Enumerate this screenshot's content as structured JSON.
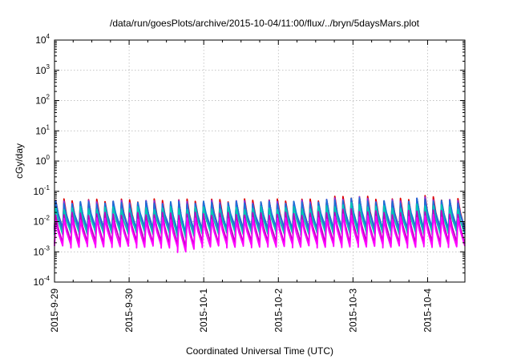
{
  "chart_data": {
    "type": "line",
    "title": "/data/run/goesPlots/archive/2015-10-04/11:00/flux/../bryn/5daysMars.plot",
    "xlabel": "Coordinated Universal Time (UTC)",
    "ylabel": "cGy/day",
    "y_scale": "log",
    "ylim": [
      0.0001,
      10000
    ],
    "y_tick_labels": [
      {
        "base": "10",
        "exp": "-4",
        "value": 0.0001
      },
      {
        "base": "10",
        "exp": "-3",
        "value": 0.001
      },
      {
        "base": "10",
        "exp": "-2",
        "value": 0.01
      },
      {
        "base": "10",
        "exp": "-1",
        "value": 0.1
      },
      {
        "base": "10",
        "exp": "0",
        "value": 1
      },
      {
        "base": "10",
        "exp": "1",
        "value": 10
      },
      {
        "base": "10",
        "exp": "2",
        "value": 100
      },
      {
        "base": "10",
        "exp": "3",
        "value": 1000
      },
      {
        "base": "10",
        "exp": "4",
        "value": 10000
      }
    ],
    "xlim": [
      "2015-09-29",
      "2015-10-04T12:00"
    ],
    "x_tick_labels": [
      "2015-9-29",
      "2015-9-30",
      "2015-10-1",
      "2015-10-2",
      "2015-10-3",
      "2015-10-4"
    ],
    "grid": true,
    "pattern": "sawtooth, about 9 cycles per day, sharp rise then decay",
    "series": [
      {
        "color": "#dd0000",
        "peak": [
          0.05,
          0.07
        ],
        "trough": [
          0.005,
          0.007
        ]
      },
      {
        "color": "#8a2be2",
        "peak": [
          0.045,
          0.065
        ],
        "trough": [
          0.0045,
          0.006
        ]
      },
      {
        "color": "#1e6fd9",
        "peak": [
          0.042,
          0.06
        ],
        "trough": [
          0.006,
          0.009
        ]
      },
      {
        "color": "#00c8b4",
        "peak": [
          0.028,
          0.04
        ],
        "trough": [
          0.004,
          0.006
        ]
      },
      {
        "color": "#c000c0",
        "peak": [
          0.018,
          0.025
        ],
        "trough": [
          0.002,
          0.003
        ]
      },
      {
        "color": "#ff00ff",
        "peak": [
          0.012,
          0.018
        ],
        "trough": [
          0.0015,
          0.0025
        ]
      }
    ]
  }
}
